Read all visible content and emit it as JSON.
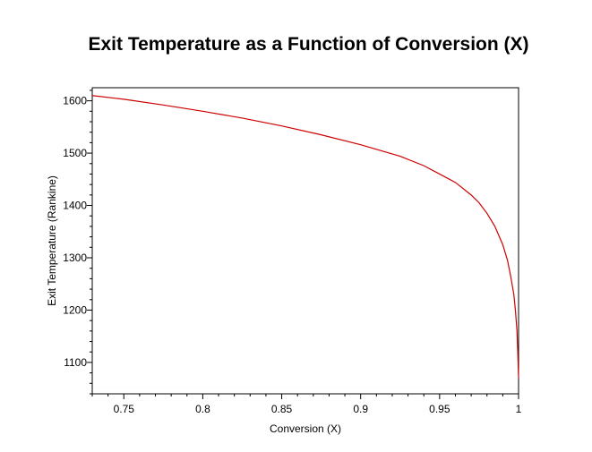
{
  "chart_data": {
    "type": "line",
    "title": "Exit Temperature as a Function of Conversion (X)",
    "xlabel": "Conversion (X)",
    "ylabel": "Exit Temperature (Rankine)",
    "xlim": [
      0.73,
      1.0
    ],
    "ylim": [
      1040,
      1625
    ],
    "xticks": [
      0.75,
      0.8,
      0.85,
      0.9,
      0.95,
      1
    ],
    "xtick_labels": [
      "0.75",
      "0.8",
      "0.85",
      "0.9",
      "0.95",
      "1"
    ],
    "yticks": [
      1100,
      1200,
      1300,
      1400,
      1500,
      1600
    ],
    "ytick_labels": [
      "1100",
      "1200",
      "1300",
      "1400",
      "1500",
      "1600"
    ],
    "grid": false,
    "series": [
      {
        "color": "#cc0000",
        "x": [
          0.73,
          0.75,
          0.775,
          0.8,
          0.825,
          0.85,
          0.875,
          0.9,
          0.925,
          0.94,
          0.95,
          0.96,
          0.97,
          0.975,
          0.98,
          0.985,
          0.99,
          0.993,
          0.995,
          0.997,
          0.998,
          0.999,
          0.9995,
          1.0
        ],
        "y": [
          1610,
          1603,
          1592,
          1580,
          1567,
          1552,
          1535,
          1516,
          1494,
          1476,
          1460,
          1444,
          1420,
          1405,
          1385,
          1360,
          1325,
          1295,
          1265,
          1230,
          1200,
          1160,
          1120,
          1070
        ]
      }
    ]
  }
}
